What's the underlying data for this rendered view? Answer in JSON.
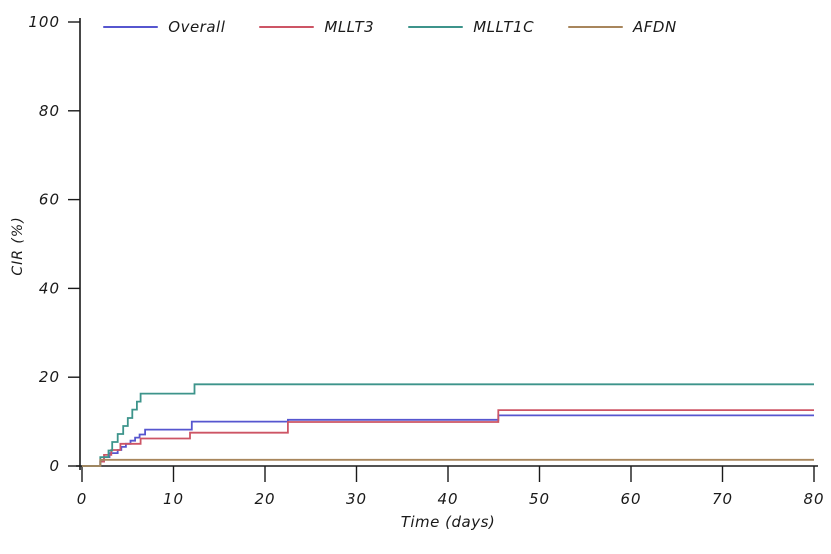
{
  "page": {
    "background": "#ffffff",
    "axis_color": "#1a1a1a",
    "text_color": "#1a1a1a"
  },
  "chart_data": {
    "type": "line",
    "subtype": "step-cumulative-incidence",
    "title": "",
    "xlabel": "Time (days)",
    "ylabel": "CIR (%)",
    "xlim": [
      0,
      80
    ],
    "ylim": [
      0,
      100
    ],
    "xticks": [
      0,
      10,
      20,
      30,
      40,
      50,
      60,
      70,
      80
    ],
    "yticks": [
      0,
      20,
      40,
      60,
      80,
      100
    ],
    "grid": false,
    "legend_position": "top-center",
    "series": [
      {
        "name": "Overall",
        "color": "#5656cf",
        "points": [
          [
            0,
            0
          ],
          [
            2,
            0
          ],
          [
            2,
            1
          ],
          [
            2.4,
            1
          ],
          [
            2.4,
            2
          ],
          [
            3,
            2
          ],
          [
            3,
            2.9
          ],
          [
            3.9,
            2.9
          ],
          [
            3.9,
            3.6
          ],
          [
            4.3,
            3.6
          ],
          [
            4.3,
            4.3
          ],
          [
            4.8,
            4.3
          ],
          [
            4.8,
            5
          ],
          [
            5.3,
            5
          ],
          [
            5.3,
            5.7
          ],
          [
            5.8,
            5.7
          ],
          [
            5.8,
            6.4
          ],
          [
            6.3,
            6.4
          ],
          [
            6.3,
            7.1
          ],
          [
            6.9,
            7.1
          ],
          [
            6.9,
            8.2
          ],
          [
            12,
            8.2
          ],
          [
            12,
            10
          ],
          [
            22.5,
            10
          ],
          [
            22.5,
            10.4
          ],
          [
            45.5,
            10.4
          ],
          [
            45.5,
            11.4
          ],
          [
            80,
            11.4
          ]
        ]
      },
      {
        "name": "MLLT3",
        "color": "#cd5565",
        "points": [
          [
            0,
            0
          ],
          [
            2,
            0
          ],
          [
            2,
            1
          ],
          [
            2.4,
            1
          ],
          [
            2.4,
            2.5
          ],
          [
            3.2,
            2.5
          ],
          [
            3.2,
            3.6
          ],
          [
            4.2,
            3.6
          ],
          [
            4.2,
            5
          ],
          [
            6.4,
            5
          ],
          [
            6.4,
            6.2
          ],
          [
            11.8,
            6.2
          ],
          [
            11.8,
            7.5
          ],
          [
            22.5,
            7.5
          ],
          [
            22.5,
            9.9
          ],
          [
            45.5,
            9.9
          ],
          [
            45.5,
            12.6
          ],
          [
            80,
            12.6
          ]
        ]
      },
      {
        "name": "MLLT1C",
        "color": "#3d948b",
        "points": [
          [
            0,
            0
          ],
          [
            2,
            0
          ],
          [
            2,
            2
          ],
          [
            2.9,
            2
          ],
          [
            2.9,
            3.5
          ],
          [
            3.3,
            3.5
          ],
          [
            3.3,
            5.4
          ],
          [
            3.9,
            5.4
          ],
          [
            3.9,
            7.2
          ],
          [
            4.5,
            7.2
          ],
          [
            4.5,
            9
          ],
          [
            5,
            9
          ],
          [
            5,
            10.8
          ],
          [
            5.5,
            10.8
          ],
          [
            5.5,
            12.7
          ],
          [
            6,
            12.7
          ],
          [
            6,
            14.5
          ],
          [
            6.4,
            14.5
          ],
          [
            6.4,
            16.3
          ],
          [
            12.3,
            16.3
          ],
          [
            12.3,
            18.4
          ],
          [
            80,
            18.4
          ]
        ]
      },
      {
        "name": "AFDN",
        "color": "#a8865c",
        "points": [
          [
            0,
            0
          ],
          [
            2,
            0
          ],
          [
            2,
            1.4
          ],
          [
            80,
            1.4
          ]
        ]
      }
    ]
  }
}
